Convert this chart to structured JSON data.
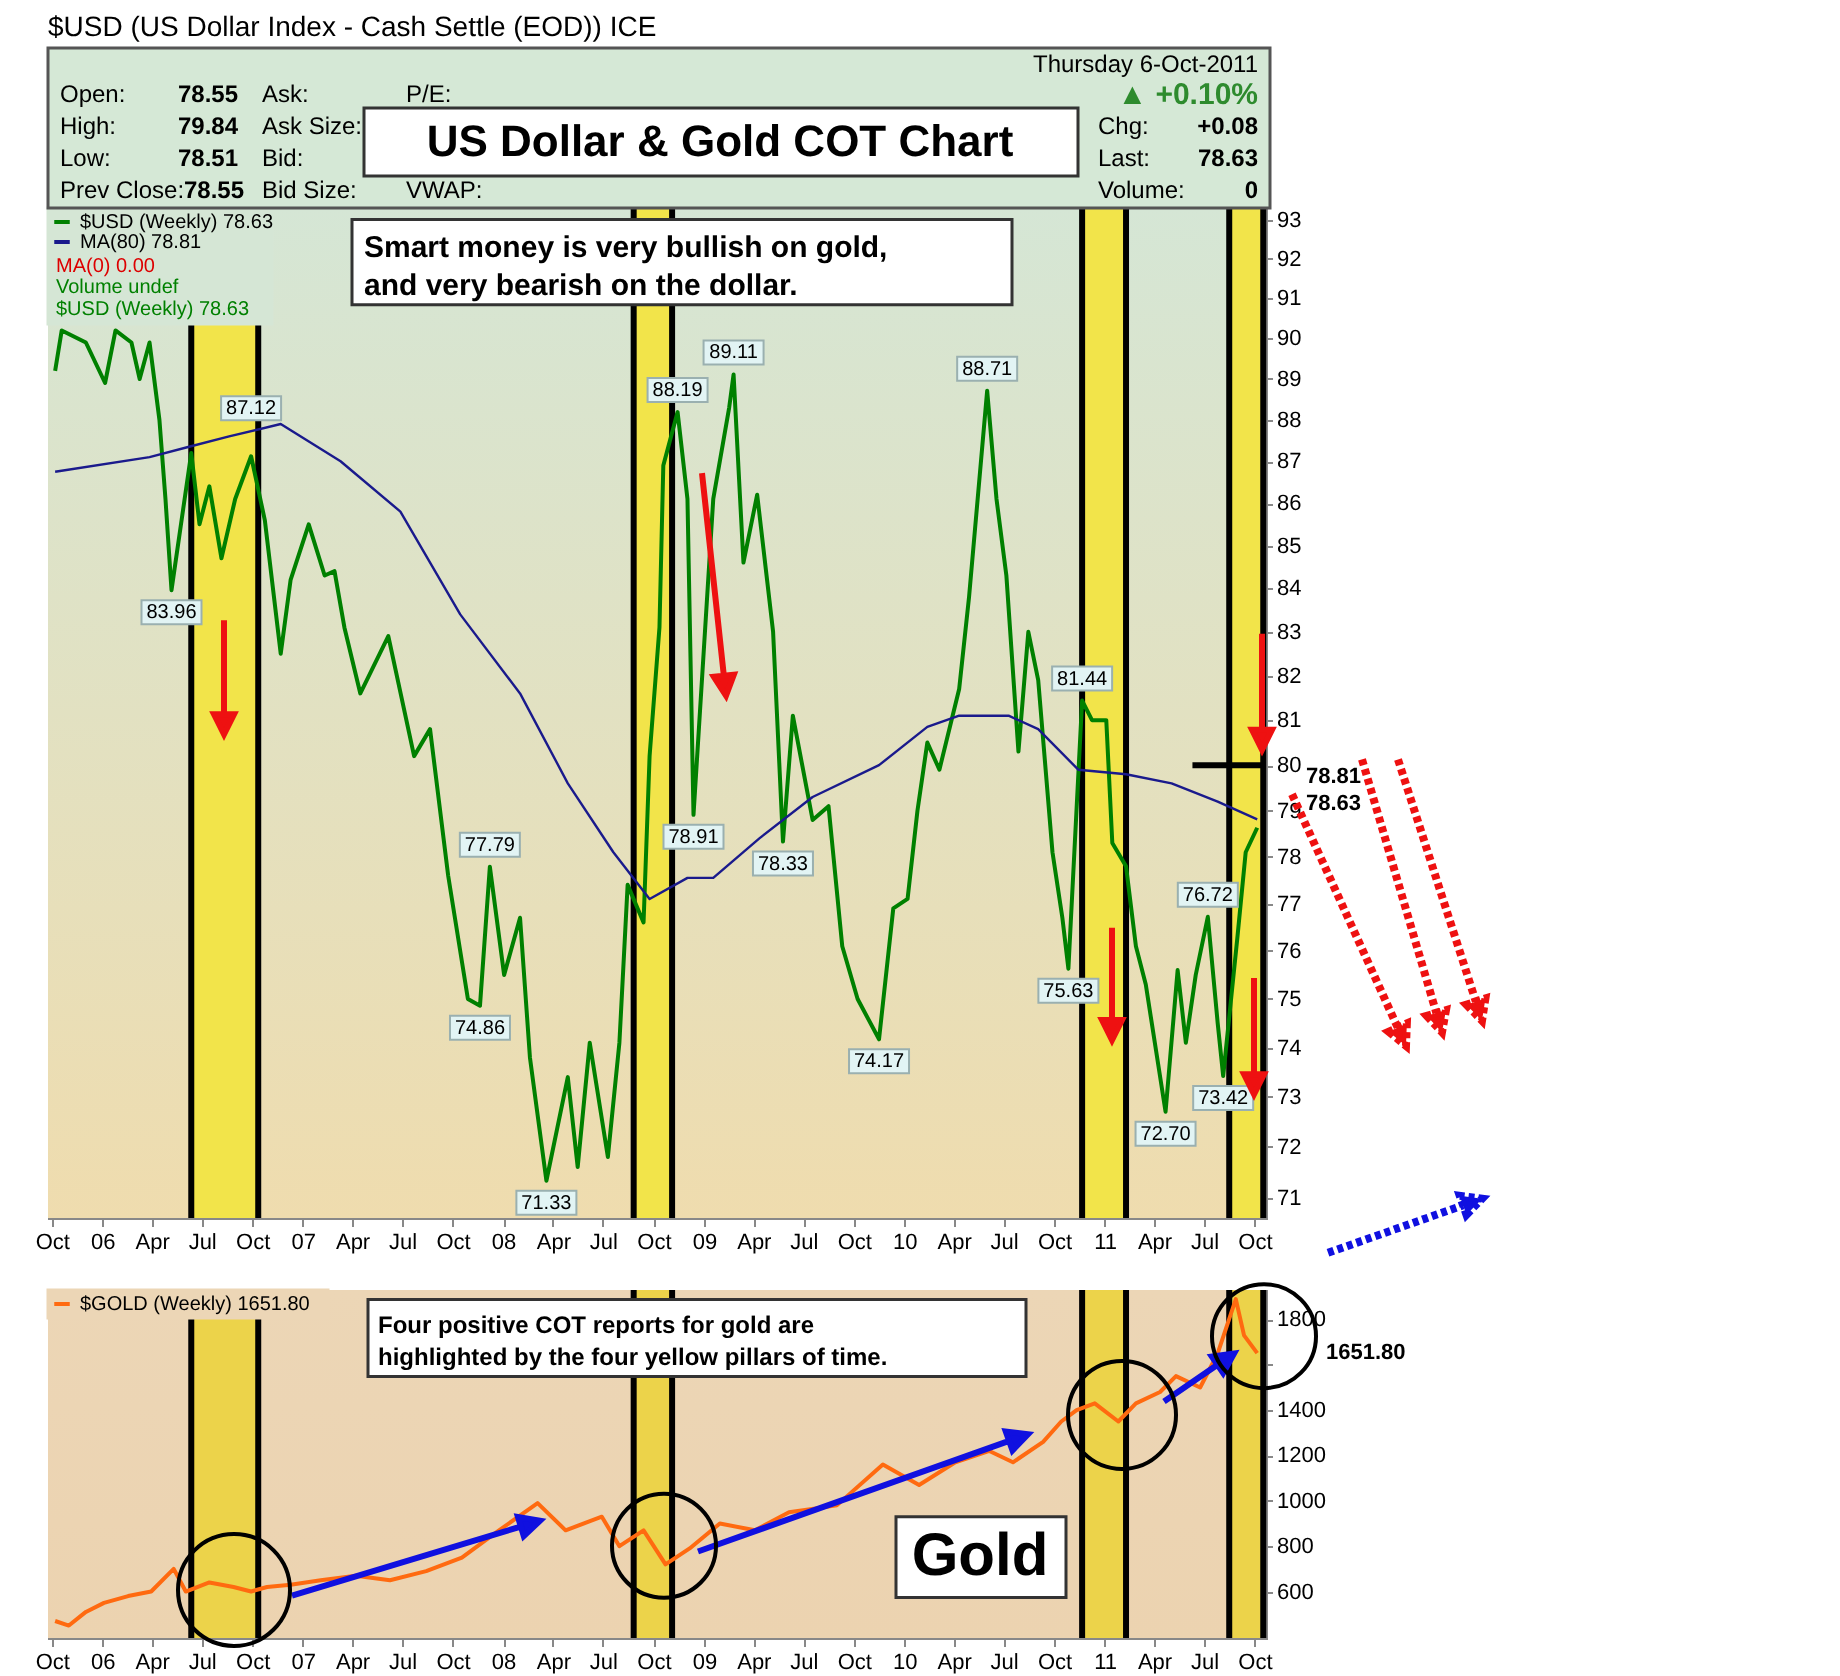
{
  "chart_data": [
    {
      "type": "line",
      "title": "US Dollar & Gold COT Chart",
      "subtitle": "$USD (US Dollar Index - Cash Settle (EOD)) ICE",
      "annotations": [
        "Thursday  6-Oct-2011",
        "Open:",
        "78.55",
        "High:",
        "79.84",
        "Low:",
        "78.51",
        "Prev Close:",
        "78.55",
        "Ask:",
        "Ask Size:",
        "Bid:",
        "Bid Size:",
        "P/E:",
        "VWAP:",
        "▲ +0.10%",
        "Chg:",
        "+0.08",
        "Last:",
        "78.63",
        "Volume:",
        "0",
        "Smart money is very bullish on gold,\nand very bearish on the dollar.",
        "MA(0) 0.00",
        "Volume undef",
        "$USD (Weekly) 78.63",
        {
          "text": "83.96",
          "x": "2006-05-07",
          "y": 83.96
        },
        {
          "text": "87.12",
          "x": "2006-09-29",
          "y": 87.12
        },
        {
          "text": "74.86",
          "x": "2007-11-20",
          "y": 74.86
        },
        {
          "text": "77.79",
          "x": "2007-12-08",
          "y": 77.79
        },
        {
          "text": "71.33",
          "x": "2008-03-20",
          "y": 71.33
        },
        {
          "text": "88.19",
          "x": "2008-11-14",
          "y": 88.19
        },
        {
          "text": "78.91",
          "x": "2008-12-13",
          "y": 78.91
        },
        {
          "text": "89.11",
          "x": "2009-02-24",
          "y": 89.11
        },
        {
          "text": "78.33",
          "x": "2009-05-25",
          "y": 78.33
        },
        {
          "text": "74.17",
          "x": "2009-11-16",
          "y": 74.17
        },
        {
          "text": "88.71",
          "x": "2010-06-01",
          "y": 88.71
        },
        {
          "text": "75.63",
          "x": "2010-10-27",
          "y": 75.63
        },
        {
          "text": "81.44",
          "x": "2010-11-21",
          "y": 81.44
        },
        {
          "text": "72.70",
          "x": "2011-04-22",
          "y": 72.7
        },
        {
          "text": "76.72",
          "x": "2011-07-08",
          "y": 76.72
        },
        {
          "text": "73.42",
          "x": "2011-08-05",
          "y": 73.42
        },
        "78.81",
        "78.63"
      ],
      "xlim": [
        "2005-09-24",
        "2011-10-22"
      ],
      "xticks": [
        {
          "value": "2005-10-01",
          "label": "Oct"
        },
        {
          "value": "2006-01-01",
          "label": "06"
        },
        {
          "value": "2006-04-01",
          "label": "Apr"
        },
        {
          "value": "2006-07-01",
          "label": "Jul"
        },
        {
          "value": "2006-10-01",
          "label": "Oct"
        },
        {
          "value": "2007-01-01",
          "label": "07"
        },
        {
          "value": "2007-04-01",
          "label": "Apr"
        },
        {
          "value": "2007-07-01",
          "label": "Jul"
        },
        {
          "value": "2007-10-01",
          "label": "Oct"
        },
        {
          "value": "2008-01-01",
          "label": "08"
        },
        {
          "value": "2008-04-01",
          "label": "Apr"
        },
        {
          "value": "2008-07-01",
          "label": "Jul"
        },
        {
          "value": "2008-10-01",
          "label": "Oct"
        },
        {
          "value": "2009-01-01",
          "label": "09"
        },
        {
          "value": "2009-04-01",
          "label": "Apr"
        },
        {
          "value": "2009-07-01",
          "label": "Jul"
        },
        {
          "value": "2009-10-01",
          "label": "Oct"
        },
        {
          "value": "2010-01-01",
          "label": "10"
        },
        {
          "value": "2010-04-01",
          "label": "Apr"
        },
        {
          "value": "2010-07-01",
          "label": "Jul"
        },
        {
          "value": "2010-10-01",
          "label": "Oct"
        },
        {
          "value": "2011-01-01",
          "label": "11"
        },
        {
          "value": "2011-04-01",
          "label": "Apr"
        },
        {
          "value": "2011-07-01",
          "label": "Jul"
        },
        {
          "value": "2011-10-01",
          "label": "Oct"
        }
      ],
      "ylim": [
        70.6,
        93.3
      ],
      "yticks": [
        71,
        72,
        73,
        74,
        75,
        76,
        77,
        78,
        79,
        80,
        81,
        82,
        83,
        84,
        85,
        86,
        87,
        88,
        89,
        90,
        91,
        92,
        93
      ],
      "log": true,
      "legend": "top left",
      "series": [
        {
          "name": "$USD (Weekly) 78.63",
          "color": "#008000",
          "x": [
            "2005-10-07",
            "2005-10-19",
            "2005-12-02",
            "2006-01-06",
            "2006-01-25",
            "2006-02-23",
            "2006-03-10",
            "2006-03-28",
            "2006-04-15",
            "2006-04-26",
            "2006-05-07",
            "2006-06-12",
            "2006-06-27",
            "2006-07-15",
            "2006-08-06",
            "2006-08-31",
            "2006-09-29",
            "2006-10-24",
            "2006-11-22",
            "2006-12-10",
            "2007-01-12",
            "2007-02-10",
            "2007-02-28",
            "2007-03-18",
            "2007-04-16",
            "2007-06-06",
            "2007-07-23",
            "2007-08-21",
            "2007-09-23",
            "2007-10-29",
            "2007-11-20",
            "2007-12-08",
            "2008-01-03",
            "2008-02-01",
            "2008-02-19",
            "2008-03-20",
            "2008-04-28",
            "2008-05-16",
            "2008-06-07",
            "2008-07-10",
            "2008-07-31",
            "2008-08-15",
            "2008-09-13",
            "2008-09-24",
            "2008-10-12",
            "2008-10-19",
            "2008-11-14",
            "2008-12-02",
            "2008-12-13",
            "2009-01-18",
            "2009-02-16",
            "2009-02-24",
            "2009-03-14",
            "2009-04-08",
            "2009-05-07",
            "2009-05-25",
            "2009-06-12",
            "2009-07-18",
            "2009-08-16",
            "2009-09-10",
            "2009-10-08",
            "2009-11-16",
            "2009-12-12",
            "2010-01-07",
            "2010-01-25",
            "2010-02-12",
            "2010-03-06",
            "2010-04-11",
            "2010-04-29",
            "2010-06-01",
            "2010-06-18",
            "2010-07-06",
            "2010-07-28",
            "2010-08-15",
            "2010-09-02",
            "2010-09-28",
            "2010-10-16",
            "2010-10-27",
            "2010-11-21",
            "2010-12-09",
            "2011-01-04",
            "2011-01-15",
            "2011-02-09",
            "2011-02-27",
            "2011-03-17",
            "2011-04-22",
            "2011-05-14",
            "2011-05-29",
            "2011-06-16",
            "2011-07-08",
            "2011-07-26",
            "2011-08-05",
            "2011-08-31",
            "2011-09-15",
            "2011-10-06"
          ],
          "values": [
            89.2,
            90.2,
            89.9,
            88.9,
            90.2,
            89.9,
            89.0,
            89.9,
            88.0,
            86.1,
            83.96,
            87.2,
            85.5,
            86.4,
            84.7,
            86.1,
            87.12,
            85.6,
            82.5,
            84.2,
            85.5,
            84.3,
            84.4,
            83.1,
            81.6,
            82.9,
            80.2,
            80.8,
            77.6,
            75.0,
            74.86,
            77.79,
            75.5,
            76.7,
            73.8,
            71.33,
            73.4,
            71.6,
            74.1,
            71.8,
            74.1,
            77.4,
            76.6,
            80.2,
            83.1,
            86.9,
            88.19,
            86.1,
            78.91,
            86.1,
            88.3,
            89.11,
            84.6,
            86.2,
            83.0,
            78.33,
            81.1,
            78.8,
            79.1,
            76.1,
            75.0,
            74.17,
            76.9,
            77.1,
            79.0,
            80.5,
            79.9,
            81.7,
            83.8,
            88.71,
            86.1,
            84.3,
            80.3,
            83.0,
            81.9,
            78.1,
            76.7,
            75.63,
            81.44,
            81.0,
            81.0,
            78.3,
            77.8,
            76.1,
            75.3,
            72.7,
            75.6,
            74.1,
            75.5,
            76.72,
            74.5,
            73.42,
            76.3,
            78.1,
            78.63
          ]
        },
        {
          "name": "MA(80) 78.81",
          "color": "#1a1a8c",
          "x": [
            "2005-10-07",
            "2006-03-28",
            "2006-06-08",
            "2006-08-20",
            "2006-11-22",
            "2007-03-11",
            "2007-06-28",
            "2007-10-15",
            "2008-02-01",
            "2008-04-28",
            "2008-07-20",
            "2008-09-24",
            "2008-12-02",
            "2009-01-18",
            "2009-04-12",
            "2009-07-18",
            "2009-11-16",
            "2010-02-12",
            "2010-04-11",
            "2010-07-10",
            "2010-09-02",
            "2010-11-14",
            "2011-02-09",
            "2011-05-03",
            "2011-07-26",
            "2011-10-06"
          ],
          "values": [
            86.75,
            87.1,
            87.35,
            87.6,
            87.9,
            87.0,
            85.8,
            83.4,
            81.6,
            79.6,
            78.1,
            77.1,
            77.55,
            77.55,
            78.4,
            79.3,
            80.0,
            80.85,
            81.1,
            81.1,
            80.8,
            79.9,
            79.8,
            79.6,
            79.2,
            78.81
          ]
        },
        {
          "color": "#000000",
          "x": [
            "2011-06-10",
            "2011-10-22"
          ],
          "values": [
            80,
            80
          ]
        }
      ],
      "bands": [
        {
          "axis": "x",
          "from": "2006-06-12",
          "to": "2006-10-12",
          "color": "#f2e44a"
        },
        {
          "axis": "x",
          "from": "2008-08-26",
          "to": "2008-11-04",
          "color": "#f2e44a"
        },
        {
          "axis": "x",
          "from": "2010-11-21",
          "to": "2011-02-09",
          "color": "#f2e44a"
        },
        {
          "axis": "x",
          "from": "2011-08-16",
          "to": "2011-10-17",
          "color": "#f2e44a"
        }
      ]
    },
    {
      "type": "line",
      "annotations": [
        "Four positive COT reports for gold are\nhighlighted by the four yellow pillars of time.",
        "Gold",
        "1651.80"
      ],
      "xlim": [
        "2005-09-24",
        "2011-10-22"
      ],
      "xticks": [
        {
          "value": "2005-10-01",
          "label": "Oct"
        },
        {
          "value": "2006-01-01",
          "label": "06"
        },
        {
          "value": "2006-04-01",
          "label": "Apr"
        },
        {
          "value": "2006-07-01",
          "label": "Jul"
        },
        {
          "value": "2006-10-01",
          "label": "Oct"
        },
        {
          "value": "2007-01-01",
          "label": "07"
        },
        {
          "value": "2007-04-01",
          "label": "Apr"
        },
        {
          "value": "2007-07-01",
          "label": "Jul"
        },
        {
          "value": "2007-10-01",
          "label": "Oct"
        },
        {
          "value": "2008-01-01",
          "label": "08"
        },
        {
          "value": "2008-04-01",
          "label": "Apr"
        },
        {
          "value": "2008-07-01",
          "label": "Jul"
        },
        {
          "value": "2008-10-01",
          "label": "Oct"
        },
        {
          "value": "2009-01-01",
          "label": "09"
        },
        {
          "value": "2009-04-01",
          "label": "Apr"
        },
        {
          "value": "2009-07-01",
          "label": "Jul"
        },
        {
          "value": "2009-10-01",
          "label": "Oct"
        },
        {
          "value": "2010-01-01",
          "label": "10"
        },
        {
          "value": "2010-04-01",
          "label": "Apr"
        },
        {
          "value": "2010-07-01",
          "label": "Jul"
        },
        {
          "value": "2010-10-01",
          "label": "Oct"
        },
        {
          "value": "2011-01-01",
          "label": "11"
        },
        {
          "value": "2011-04-01",
          "label": "Apr"
        },
        {
          "value": "2011-07-01",
          "label": "Jul"
        },
        {
          "value": "2011-10-01",
          "label": "Oct"
        }
      ],
      "ylim": [
        395,
        1930
      ],
      "yticks": [
        600,
        800,
        1000,
        1200,
        1400,
        {
          "value": 1600,
          "label": null
        },
        1800
      ],
      "legend": "top left",
      "series": [
        {
          "name": "$GOLD (Weekly) 1651.80",
          "color": "#ff6a10",
          "x": [
            "2005-10-07",
            "2005-11-01",
            "2005-12-02",
            "2006-01-04",
            "2006-02-17",
            "2006-03-31",
            "2006-05-11",
            "2006-06-02",
            "2006-07-15",
            "2006-08-28",
            "2006-09-29",
            "2006-10-28",
            "2006-12-10",
            "2007-02-03",
            "2007-04-08",
            "2007-06-09",
            "2007-08-14",
            "2007-10-18",
            "2007-12-19",
            "2008-03-04",
            "2008-04-24",
            "2008-06-29",
            "2008-07-31",
            "2008-09-13",
            "2008-10-23",
            "2008-12-06",
            "2009-01-30",
            "2009-04-04",
            "2009-06-05",
            "2009-08-31",
            "2009-11-23",
            "2010-01-28",
            "2010-04-04",
            "2010-06-05",
            "2010-07-18",
            "2010-09-11",
            "2010-10-14",
            "2010-11-11",
            "2010-12-14",
            "2011-01-26",
            "2011-02-27",
            "2011-04-12",
            "2011-05-11",
            "2011-06-24",
            "2011-07-26",
            "2011-08-28",
            "2011-09-12",
            "2011-10-06"
          ],
          "values": [
            470,
            450,
            510,
            550,
            580,
            600,
            700,
            600,
            640,
            620,
            600,
            620,
            630,
            650,
            670,
            650,
            690,
            750,
            860,
            990,
            870,
            930,
            800,
            870,
            720,
            790,
            900,
            870,
            950,
            980,
            1160,
            1070,
            1170,
            1220,
            1170,
            1260,
            1350,
            1400,
            1430,
            1350,
            1430,
            1480,
            1550,
            1500,
            1650,
            1890,
            1730,
            1651.8
          ]
        }
      ],
      "bands": [
        {
          "axis": "x",
          "from": "2006-06-12",
          "to": "2006-10-12",
          "color": "#ecd34a"
        },
        {
          "axis": "x",
          "from": "2008-08-26",
          "to": "2008-11-04",
          "color": "#ecd34a"
        },
        {
          "axis": "x",
          "from": "2010-11-21",
          "to": "2011-02-09",
          "color": "#ecd34a"
        },
        {
          "axis": "x",
          "from": "2011-08-16",
          "to": "2011-10-17",
          "color": "#ecd34a"
        }
      ]
    }
  ]
}
